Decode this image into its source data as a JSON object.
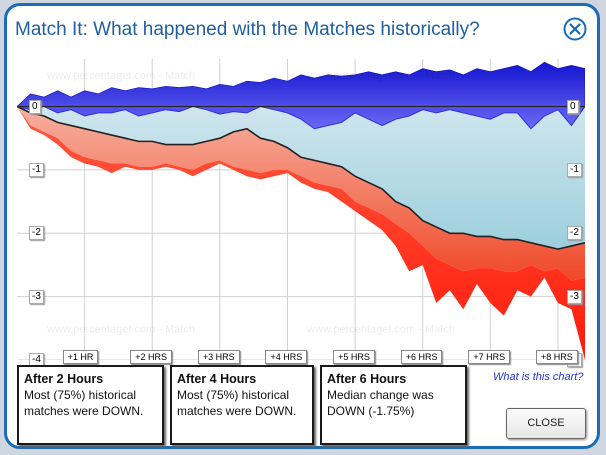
{
  "dialog": {
    "title": "Match It: What happened with the Matches historically?",
    "close_icon": "close-icon"
  },
  "chart_data": {
    "type": "area",
    "watermark": "www.percentaget.com - Match",
    "y_ticks": [
      "0",
      "-1",
      "-2",
      "-3",
      "-4"
    ],
    "y_ticks_right": [
      "0",
      "-1",
      "-2",
      "-3",
      "-4"
    ],
    "x_ticks": [
      "+1 HR",
      "+2 HRS",
      "+3 HRS",
      "+4 HRS",
      "+5 HRS",
      "+6 HRS",
      "+7 HRS",
      "+8 HRS"
    ],
    "xlim": [
      0,
      8.4
    ],
    "ylim": [
      -4,
      0.75
    ],
    "grid": true,
    "series": [
      {
        "color": "#2a2ad8",
        "x": [
          0,
          0.2,
          0.4,
          0.6,
          0.8,
          1.0,
          1.2,
          1.4,
          1.6,
          1.8,
          2.0,
          2.2,
          2.4,
          2.6,
          2.8,
          3.0,
          3.2,
          3.4,
          3.6,
          3.8,
          4.0,
          4.2,
          4.4,
          4.6,
          4.8,
          5.0,
          5.2,
          5.4,
          5.6,
          5.8,
          6.0,
          6.2,
          6.4,
          6.6,
          6.8,
          7.0,
          7.2,
          7.4,
          7.6,
          7.8,
          8.0,
          8.2,
          8.4
        ],
        "values": [
          0.0,
          0.2,
          0.15,
          0.25,
          0.15,
          0.25,
          0.2,
          0.3,
          0.25,
          0.3,
          0.28,
          0.32,
          0.3,
          0.32,
          0.28,
          0.35,
          0.32,
          0.4,
          0.38,
          0.45,
          0.4,
          0.5,
          0.45,
          0.5,
          0.48,
          0.5,
          0.55,
          0.5,
          0.55,
          0.5,
          0.6,
          0.55,
          0.58,
          0.5,
          0.6,
          0.55,
          0.6,
          0.65,
          0.55,
          0.7,
          0.6,
          0.65,
          0.6
        ]
      },
      {
        "color": "#5a5af0",
        "x": [
          0,
          0.2,
          0.4,
          0.6,
          0.8,
          1.0,
          1.2,
          1.4,
          1.6,
          1.8,
          2.0,
          2.2,
          2.4,
          2.6,
          2.8,
          3.0,
          3.2,
          3.4,
          3.6,
          3.8,
          4.0,
          4.2,
          4.4,
          4.6,
          4.8,
          5.0,
          5.2,
          5.4,
          5.6,
          5.8,
          6.0,
          6.2,
          6.4,
          6.6,
          6.8,
          7.0,
          7.2,
          7.4,
          7.6,
          7.8,
          8.0,
          8.2,
          8.4
        ],
        "values": [
          0.0,
          -0.05,
          0.0,
          -0.1,
          -0.05,
          -0.15,
          -0.1,
          -0.1,
          -0.05,
          -0.15,
          -0.1,
          -0.05,
          -0.08,
          0.0,
          -0.05,
          -0.12,
          -0.08,
          -0.1,
          0.0,
          -0.05,
          -0.1,
          -0.2,
          -0.35,
          -0.3,
          -0.25,
          -0.1,
          -0.2,
          -0.3,
          -0.2,
          -0.15,
          -0.05,
          -0.1,
          -0.05,
          -0.1,
          -0.15,
          -0.2,
          -0.1,
          -0.1,
          -0.35,
          -0.15,
          -0.05,
          -0.3,
          0.0
        ]
      },
      {
        "color": "#222222",
        "x": [
          0,
          0.2,
          0.4,
          0.6,
          0.8,
          1.0,
          1.2,
          1.4,
          1.6,
          1.8,
          2.0,
          2.2,
          2.4,
          2.6,
          2.8,
          3.0,
          3.2,
          3.4,
          3.6,
          3.8,
          4.0,
          4.2,
          4.4,
          4.6,
          4.8,
          5.0,
          5.2,
          5.4,
          5.6,
          5.8,
          6.0,
          6.2,
          6.4,
          6.6,
          6.8,
          7.0,
          7.2,
          7.4,
          7.6,
          7.8,
          8.0,
          8.2,
          8.4
        ],
        "values": [
          0.0,
          -0.1,
          -0.15,
          -0.25,
          -0.3,
          -0.35,
          -0.4,
          -0.45,
          -0.5,
          -0.55,
          -0.55,
          -0.6,
          -0.6,
          -0.6,
          -0.55,
          -0.5,
          -0.4,
          -0.35,
          -0.5,
          -0.55,
          -0.65,
          -0.8,
          -0.85,
          -0.9,
          -0.95,
          -1.1,
          -1.2,
          -1.3,
          -1.5,
          -1.6,
          -1.8,
          -1.9,
          -2.0,
          -2.0,
          -2.05,
          -2.05,
          -2.1,
          -2.1,
          -2.15,
          -2.2,
          -2.25,
          -2.2,
          -2.15
        ]
      },
      {
        "color": "#e03020",
        "x": [
          0,
          0.2,
          0.4,
          0.6,
          0.8,
          1.0,
          1.2,
          1.4,
          1.6,
          1.8,
          2.0,
          2.2,
          2.4,
          2.6,
          2.8,
          3.0,
          3.2,
          3.4,
          3.6,
          3.8,
          4.0,
          4.2,
          4.4,
          4.6,
          4.8,
          5.0,
          5.2,
          5.4,
          5.6,
          5.8,
          6.0,
          6.2,
          6.4,
          6.6,
          6.8,
          7.0,
          7.2,
          7.4,
          7.6,
          7.8,
          8.0,
          8.2,
          8.4
        ],
        "values": [
          0.0,
          -0.3,
          -0.4,
          -0.5,
          -0.7,
          -0.8,
          -0.85,
          -0.9,
          -0.9,
          -0.95,
          -0.95,
          -0.9,
          -0.95,
          -1.0,
          -0.9,
          -0.85,
          -0.95,
          -1.0,
          -1.05,
          -1.0,
          -1.0,
          -1.1,
          -1.2,
          -1.25,
          -1.3,
          -1.5,
          -1.6,
          -1.7,
          -1.85,
          -2.0,
          -2.2,
          -2.4,
          -2.5,
          -2.6,
          -2.55,
          -2.55,
          -2.6,
          -2.6,
          -2.5,
          -2.6,
          -2.55,
          -2.75,
          -2.7
        ]
      },
      {
        "color": "#ff2a1a",
        "x": [
          0,
          0.2,
          0.4,
          0.6,
          0.8,
          1.0,
          1.2,
          1.4,
          1.6,
          1.8,
          2.0,
          2.2,
          2.4,
          2.6,
          2.8,
          3.0,
          3.2,
          3.4,
          3.6,
          3.8,
          4.0,
          4.2,
          4.4,
          4.6,
          4.8,
          5.0,
          5.2,
          5.4,
          5.6,
          5.8,
          6.0,
          6.2,
          6.4,
          6.6,
          6.8,
          7.0,
          7.2,
          7.4,
          7.6,
          7.8,
          8.0,
          8.2,
          8.4
        ],
        "values": [
          0.0,
          -0.35,
          -0.45,
          -0.6,
          -0.8,
          -0.9,
          -0.95,
          -1.05,
          -0.95,
          -1.0,
          -1.0,
          -0.95,
          -1.0,
          -1.1,
          -1.0,
          -0.9,
          -1.0,
          -1.1,
          -1.15,
          -1.1,
          -1.05,
          -1.2,
          -1.3,
          -1.35,
          -1.5,
          -1.65,
          -1.8,
          -1.95,
          -2.2,
          -2.6,
          -2.5,
          -3.1,
          -2.9,
          -3.2,
          -2.8,
          -3.1,
          -3.3,
          -2.9,
          -3.0,
          -2.7,
          -3.1,
          -3.2,
          -4.0
        ]
      }
    ]
  },
  "summaries": [
    {
      "heading": "After 2 Hours",
      "text": "Most (75%) historical matches were DOWN."
    },
    {
      "heading": "After 4 Hours",
      "text": "Most (75%) historical matches were DOWN."
    },
    {
      "heading": "After 6 Hours",
      "text": "Median change was DOWN (-1.75%)"
    }
  ],
  "help_link": "What is this chart?",
  "close_button": "CLOSE"
}
